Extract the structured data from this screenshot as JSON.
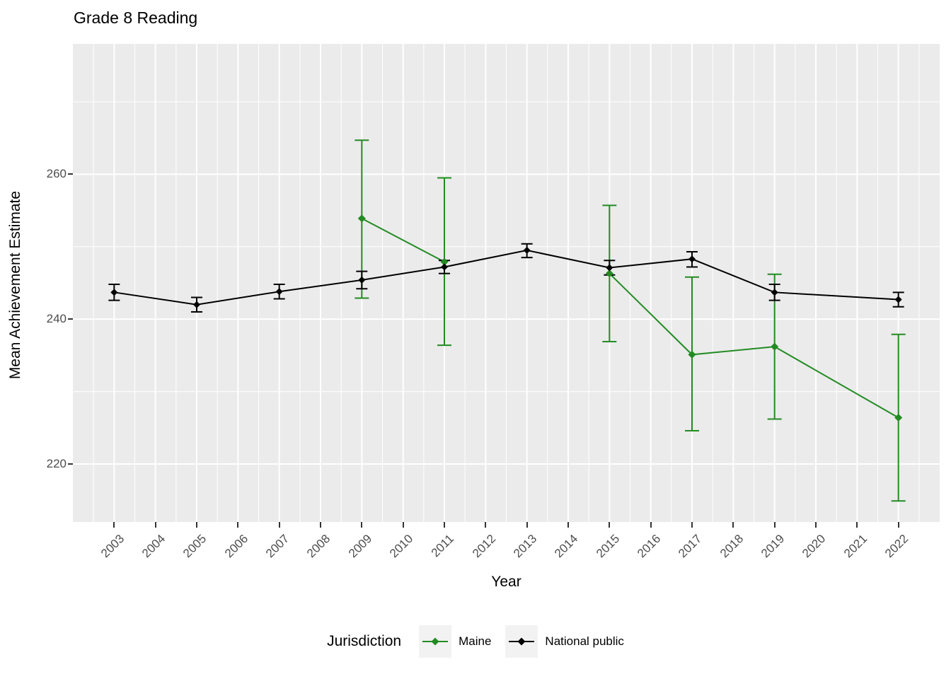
{
  "header": {
    "title": "Grade 8 Reading"
  },
  "colors": {
    "maine": "#228B22",
    "national_public": "#000000",
    "panel_background": "#EBEBEB",
    "gridline": "#FFFFFF",
    "axis_text": "#4D4D4D",
    "tick_mark": "#333333",
    "legend_key_background": "#F2F2F2"
  },
  "chart_data": {
    "type": "line",
    "title": "Grade 8 Reading",
    "xlabel": "Year",
    "ylabel": "Mean Achievement Estimate",
    "legend_title": "Jurisdiction",
    "legend_position": "bottom",
    "grid": true,
    "error_bars": true,
    "xlim": [
      2002,
      2023
    ],
    "ylim": [
      212,
      278
    ],
    "x_ticks": [
      2003,
      2004,
      2005,
      2006,
      2007,
      2008,
      2009,
      2010,
      2011,
      2012,
      2013,
      2014,
      2015,
      2016,
      2017,
      2018,
      2019,
      2020,
      2021,
      2022
    ],
    "y_ticks": [
      220,
      240,
      260
    ],
    "y_minor_gridlines": [
      230,
      250,
      270
    ],
    "series": [
      {
        "name": "Maine",
        "color": "#228B22",
        "points": [
          {
            "year": 2009,
            "mean": 253.9,
            "ci_low": 242.9,
            "ci_high": 264.7
          },
          {
            "year": 2011,
            "mean": 247.9,
            "ci_low": 236.4,
            "ci_high": 259.5
          },
          {
            "year": 2015,
            "mean": 246.3,
            "ci_low": 236.9,
            "ci_high": 255.7
          },
          {
            "year": 2017,
            "mean": 235.1,
            "ci_low": 224.6,
            "ci_high": 245.8
          },
          {
            "year": 2019,
            "mean": 236.2,
            "ci_low": 226.2,
            "ci_high": 246.2
          },
          {
            "year": 2022,
            "mean": 226.4,
            "ci_low": 214.9,
            "ci_high": 237.9
          }
        ],
        "line_segments": [
          [
            2009,
            2011
          ],
          [
            2015,
            2017,
            2019,
            2022
          ]
        ]
      },
      {
        "name": "National public",
        "color": "#000000",
        "points": [
          {
            "year": 2003,
            "mean": 243.7,
            "ci_low": 242.6,
            "ci_high": 244.8
          },
          {
            "year": 2005,
            "mean": 242.0,
            "ci_low": 241.0,
            "ci_high": 243.0
          },
          {
            "year": 2007,
            "mean": 243.8,
            "ci_low": 242.8,
            "ci_high": 244.8
          },
          {
            "year": 2009,
            "mean": 245.4,
            "ci_low": 244.2,
            "ci_high": 246.6
          },
          {
            "year": 2011,
            "mean": 247.2,
            "ci_low": 246.3,
            "ci_high": 248.1
          },
          {
            "year": 2013,
            "mean": 249.5,
            "ci_low": 248.5,
            "ci_high": 250.4
          },
          {
            "year": 2015,
            "mean": 247.1,
            "ci_low": 246.1,
            "ci_high": 248.1
          },
          {
            "year": 2017,
            "mean": 248.3,
            "ci_low": 247.2,
            "ci_high": 249.3
          },
          {
            "year": 2019,
            "mean": 243.7,
            "ci_low": 242.6,
            "ci_high": 244.8
          },
          {
            "year": 2022,
            "mean": 242.7,
            "ci_low": 241.7,
            "ci_high": 243.7
          }
        ],
        "line_segments": [
          [
            2003,
            2005,
            2007,
            2009,
            2011,
            2013,
            2015,
            2017,
            2019,
            2022
          ]
        ]
      }
    ]
  }
}
